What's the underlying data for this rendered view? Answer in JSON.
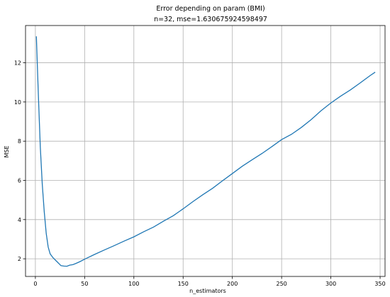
{
  "chart_data": {
    "type": "line",
    "title": "Error depending on param (BMI)",
    "subtitle": "n=32, mse=1.630675924598497",
    "xlabel": "n_estimators",
    "ylabel": "MSE",
    "xlim": [
      -10,
      355
    ],
    "ylim": [
      1.1,
      13.9
    ],
    "xticks": [
      0,
      50,
      100,
      150,
      200,
      250,
      300,
      350
    ],
    "yticks": [
      2,
      4,
      6,
      8,
      10,
      12
    ],
    "grid": true,
    "line_color": "#1f77b4",
    "series": [
      {
        "x": [
          1,
          3,
          5,
          7,
          9,
          11,
          13,
          15,
          18,
          22,
          26,
          29,
          32,
          35,
          38,
          41,
          45,
          50,
          55,
          60,
          70,
          80,
          90,
          100,
          110,
          120,
          130,
          140,
          150,
          160,
          170,
          180,
          190,
          200,
          210,
          220,
          230,
          240,
          250,
          260,
          270,
          280,
          290,
          300,
          310,
          320,
          330,
          340,
          345
        ],
        "y": [
          13.35,
          10.4,
          7.7,
          5.8,
          4.4,
          3.3,
          2.6,
          2.25,
          2.05,
          1.85,
          1.65,
          1.63,
          1.62,
          1.68,
          1.7,
          1.76,
          1.85,
          1.98,
          2.1,
          2.22,
          2.45,
          2.67,
          2.9,
          3.12,
          3.38,
          3.62,
          3.92,
          4.2,
          4.55,
          4.92,
          5.27,
          5.6,
          5.98,
          6.35,
          6.72,
          7.05,
          7.37,
          7.72,
          8.08,
          8.35,
          8.7,
          9.1,
          9.55,
          9.95,
          10.3,
          10.62,
          10.98,
          11.35,
          11.52
        ]
      }
    ]
  }
}
